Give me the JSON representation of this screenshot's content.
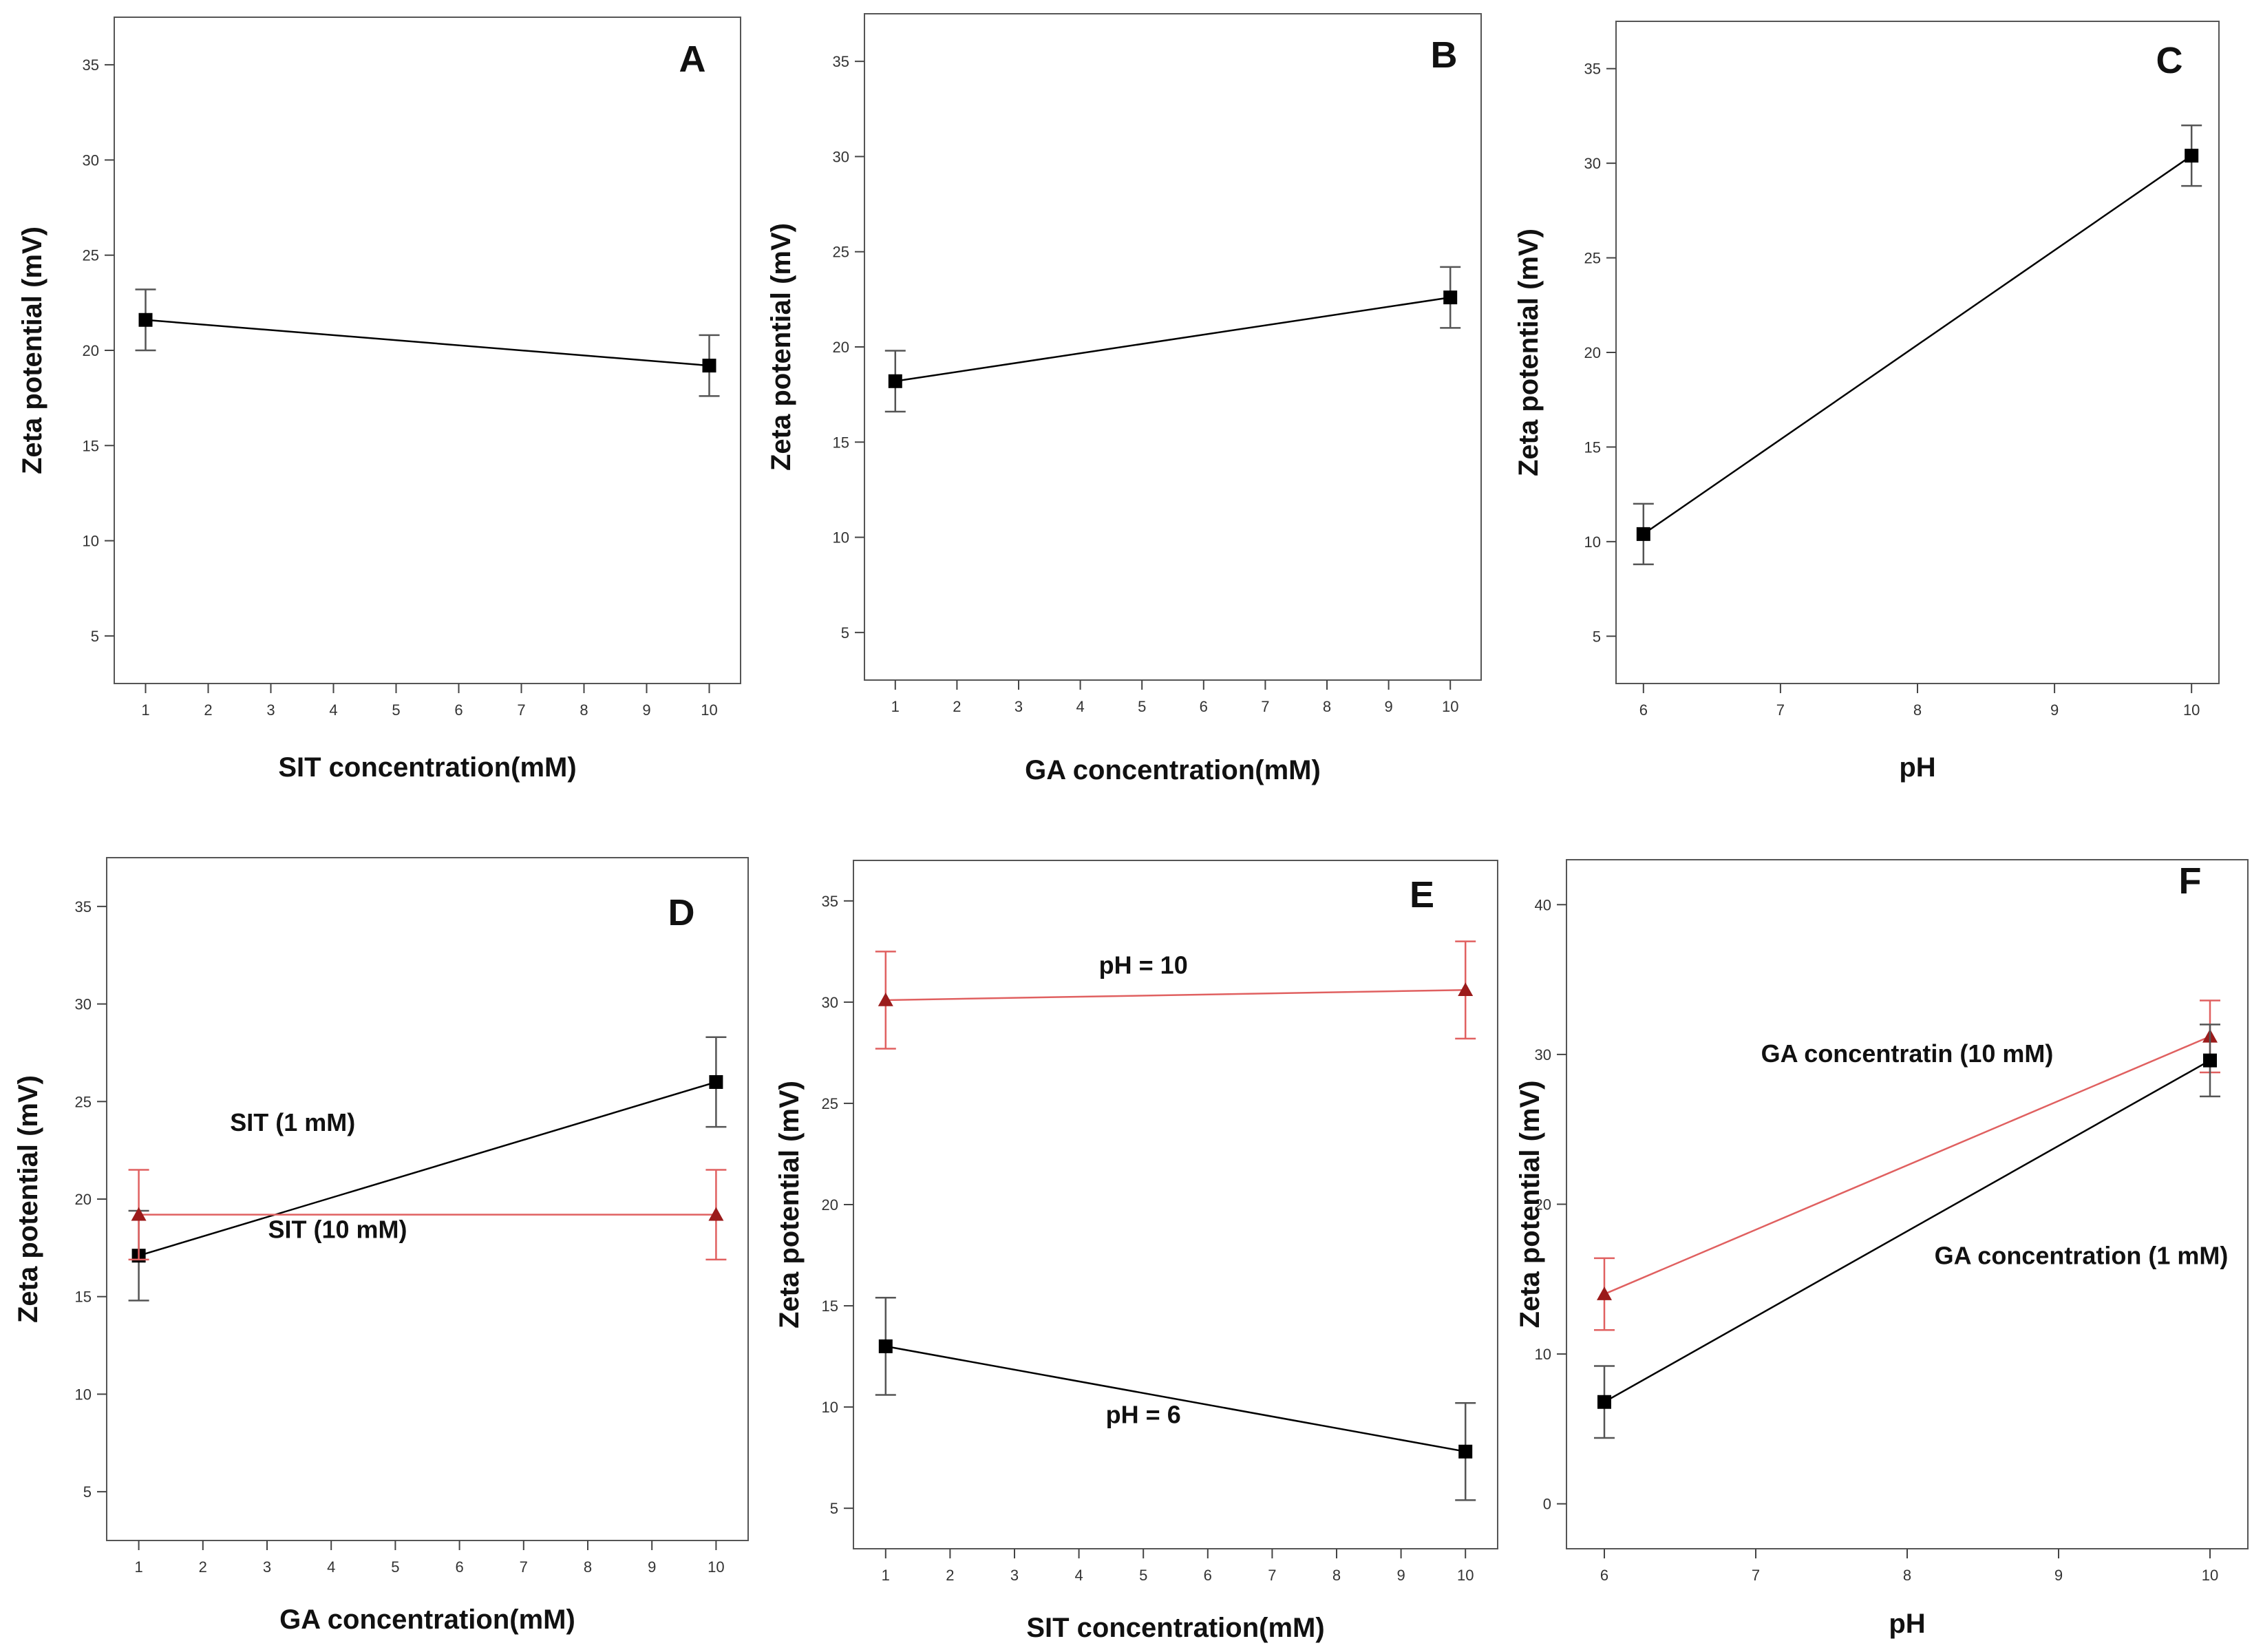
{
  "colors": {
    "black_series": "#000000",
    "red_series": "#e06060",
    "red_marker": "#9b1b1b",
    "error_black": "#555555",
    "frame": "#555555"
  },
  "chart_data": [
    {
      "id": "A",
      "type": "line",
      "label": "A",
      "xlabel": "SIT concentration(mM)",
      "ylabel": "Zeta potential (mV)",
      "xlim": [
        0.5,
        10.5
      ],
      "ylim": [
        2.5,
        37.5
      ],
      "xticks": [
        1,
        2,
        3,
        4,
        5,
        6,
        7,
        8,
        9,
        10
      ],
      "yticks": [
        5,
        10,
        15,
        20,
        25,
        30,
        35
      ],
      "annotations": [],
      "series": [
        {
          "color": "black",
          "marker": "square",
          "x": [
            1,
            10
          ],
          "y": [
            21.6,
            19.2
          ],
          "err": [
            1.6,
            1.6
          ]
        }
      ]
    },
    {
      "id": "B",
      "type": "line",
      "label": "B",
      "xlabel": "GA concentration(mM)",
      "ylabel": "Zeta potential (mV)",
      "xlim": [
        0.5,
        10.5
      ],
      "ylim": [
        2.5,
        37.5
      ],
      "xticks": [
        1,
        2,
        3,
        4,
        5,
        6,
        7,
        8,
        9,
        10
      ],
      "yticks": [
        5,
        10,
        15,
        20,
        25,
        30,
        35
      ],
      "annotations": [],
      "series": [
        {
          "color": "black",
          "marker": "square",
          "x": [
            1,
            10
          ],
          "y": [
            18.2,
            22.6
          ],
          "err": [
            1.6,
            1.6
          ]
        }
      ]
    },
    {
      "id": "C",
      "type": "line",
      "label": "C",
      "xlabel": "pH",
      "ylabel": "Zeta potential (mV)",
      "xlim": [
        5.8,
        10.2
      ],
      "ylim": [
        2.5,
        37.5
      ],
      "xticks": [
        6,
        7,
        8,
        9,
        10
      ],
      "yticks": [
        5,
        10,
        15,
        20,
        25,
        30,
        35
      ],
      "annotations": [],
      "series": [
        {
          "color": "black",
          "marker": "square",
          "x": [
            6,
            10
          ],
          "y": [
            10.4,
            30.4
          ],
          "err": [
            1.6,
            1.6
          ]
        }
      ]
    },
    {
      "id": "D",
      "type": "line",
      "label": "D",
      "xlabel": "GA concentration(mM)",
      "ylabel": "Zeta potential (mV)",
      "xlim": [
        0.5,
        10.5
      ],
      "ylim": [
        2.5,
        37.5
      ],
      "xticks": [
        1,
        2,
        3,
        4,
        5,
        6,
        7,
        8,
        9,
        10
      ],
      "yticks": [
        5,
        10,
        15,
        20,
        25,
        30,
        35
      ],
      "annotations": [
        {
          "text": "SIT (1 mM)",
          "x": 3.4,
          "y": 23.5
        },
        {
          "text": "SIT (10 mM)",
          "x": 4.1,
          "y": 18.0
        }
      ],
      "series": [
        {
          "color": "black",
          "marker": "square",
          "x": [
            1,
            10
          ],
          "y": [
            17.1,
            26.0
          ],
          "err": [
            2.3,
            2.3
          ]
        },
        {
          "color": "red",
          "marker": "triangle",
          "x": [
            1,
            10
          ],
          "y": [
            19.2,
            19.2
          ],
          "err": [
            2.3,
            2.3
          ]
        }
      ]
    },
    {
      "id": "E",
      "type": "line",
      "label": "E",
      "xlabel": "SIT concentration(mM)",
      "ylabel": "Zeta potential (mV)",
      "xlim": [
        0.5,
        10.5
      ],
      "ylim": [
        3.0,
        37.0
      ],
      "xticks": [
        1,
        2,
        3,
        4,
        5,
        6,
        7,
        8,
        9,
        10
      ],
      "yticks": [
        5,
        10,
        15,
        20,
        25,
        30,
        35
      ],
      "annotations": [
        {
          "text": "pH = 10",
          "x": 5.0,
          "y": 31.4
        },
        {
          "text": "pH = 6",
          "x": 5.0,
          "y": 9.2
        }
      ],
      "series": [
        {
          "color": "red",
          "marker": "triangle",
          "x": [
            1,
            10
          ],
          "y": [
            30.1,
            30.6
          ],
          "err": [
            2.4,
            2.4
          ]
        },
        {
          "color": "black",
          "marker": "square",
          "x": [
            1,
            10
          ],
          "y": [
            13.0,
            7.8
          ],
          "err": [
            2.4,
            2.4
          ]
        }
      ]
    },
    {
      "id": "F",
      "type": "line",
      "label": "F",
      "xlabel": "pH",
      "ylabel": "Zeta potential (mV)",
      "xlim": [
        5.75,
        10.25
      ],
      "ylim": [
        -3.0,
        43.0
      ],
      "xticks": [
        6,
        7,
        8,
        9,
        10
      ],
      "yticks": [
        0,
        10,
        20,
        30,
        40
      ],
      "annotations": [
        {
          "text": "GA concentratin (10 mM)",
          "x": 8.0,
          "y": 29.5
        },
        {
          "text": "GA concentration (1 mM)",
          "x": 9.15,
          "y": 16.0
        }
      ],
      "series": [
        {
          "color": "red",
          "marker": "triangle",
          "x": [
            6,
            10
          ],
          "y": [
            14.0,
            31.2
          ],
          "err": [
            2.4,
            2.4
          ]
        },
        {
          "color": "black",
          "marker": "square",
          "x": [
            6,
            10
          ],
          "y": [
            6.8,
            29.6
          ],
          "err": [
            2.4,
            2.4
          ]
        }
      ]
    }
  ]
}
